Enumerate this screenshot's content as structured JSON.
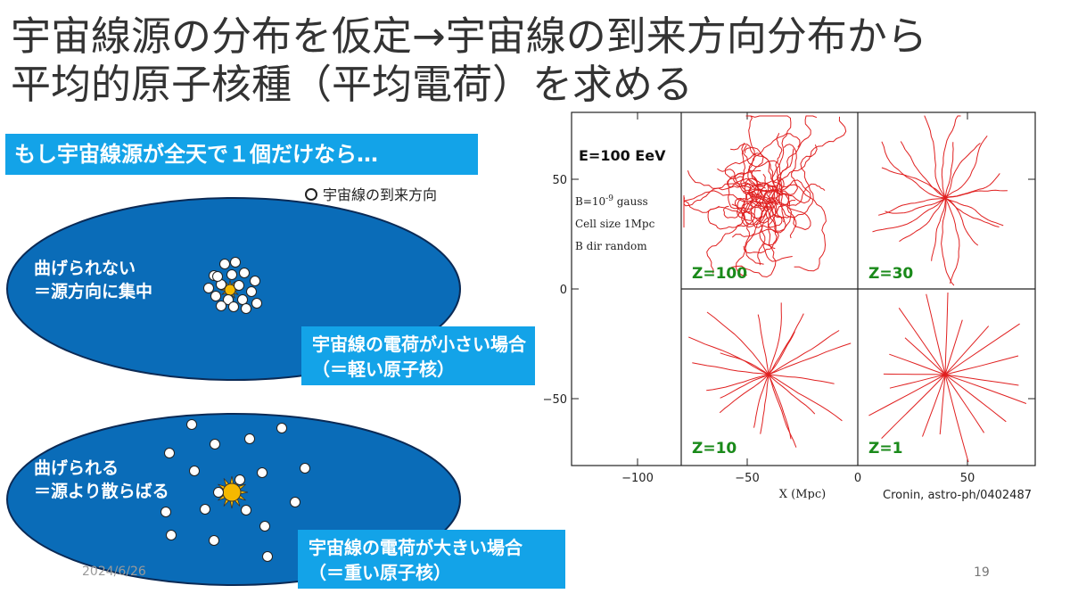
{
  "title": {
    "line1": "宇宙線源の分布を仮定→宇宙線の到来方向分布から",
    "line2": "平均的原子核種（平均電荷）を求める"
  },
  "banner": "もし宇宙線源が全天で１個だけなら…",
  "legend": "宇宙線の到来方向",
  "upper_sky": {
    "text_line1": "曲げられない",
    "text_line2": "＝源方向に集中",
    "caption_line1": "宇宙線の電荷が小さい場合",
    "caption_line2": "（＝軽い原子核）"
  },
  "lower_sky": {
    "text_line1": "曲げられる",
    "text_line2": "＝源より散らばる",
    "caption_line1": "宇宙線の電荷が大きい場合",
    "caption_line2": "（＝重い原子核）"
  },
  "footer": {
    "date": "2024/6/26",
    "page": "19"
  },
  "figure": {
    "energy": "E=100 EeV",
    "param_b": "B=10",
    "param_b_exp": "-9",
    "param_b_unit": " gauss",
    "param_cell": "Cell size 1Mpc",
    "param_dir": "B dir random",
    "panels": [
      "Z=100",
      "Z=30",
      "Z=10",
      "Z=1"
    ],
    "y_ticks": [
      "50",
      "0",
      "−50"
    ],
    "x_ticks": [
      "−100",
      "−50",
      "0",
      "50"
    ],
    "xlabel": "X (Mpc)",
    "credit": "Cronin, astro-ph/0402487"
  },
  "colors": {
    "sky": "#0a6cb8",
    "banner": "#13a3e8",
    "track": "#e02020",
    "sun": "#f5b800",
    "panel_label": "#1a8a1a"
  }
}
